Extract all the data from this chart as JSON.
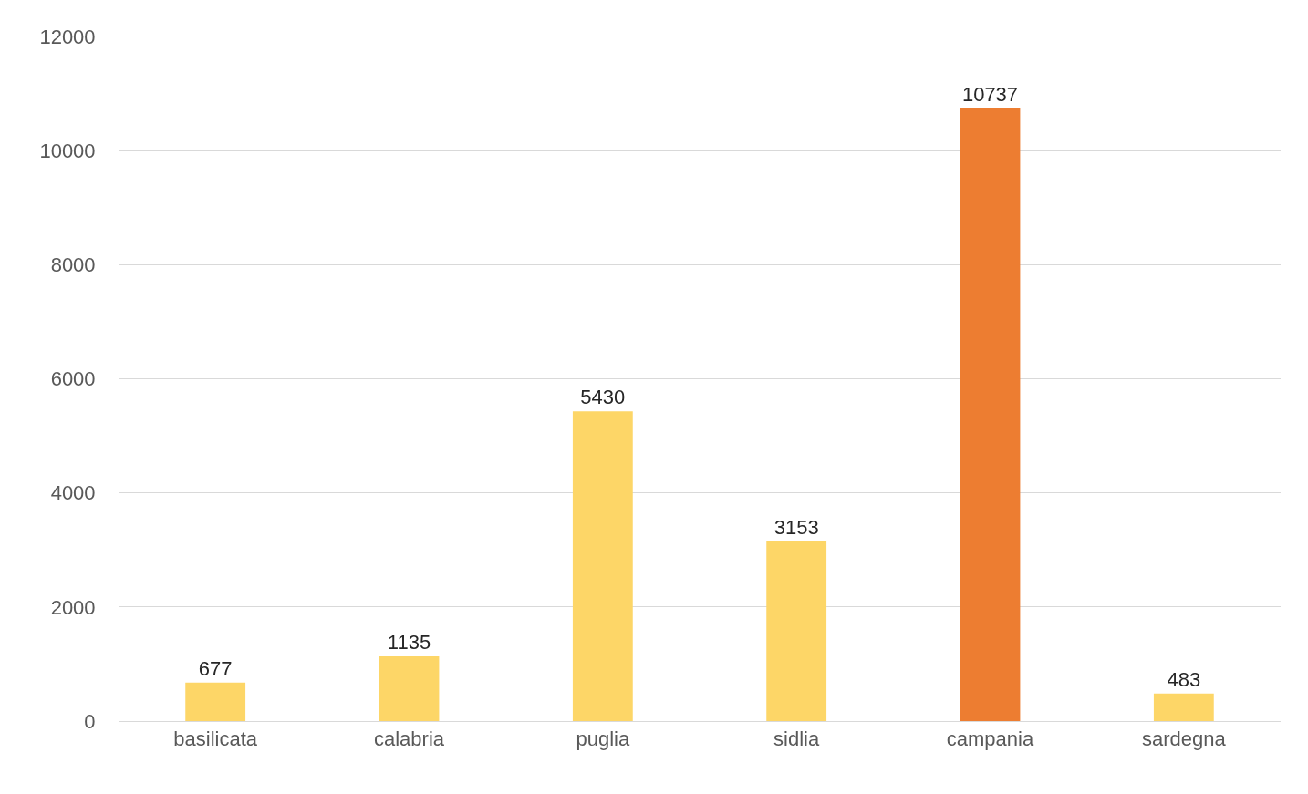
{
  "chart_data": {
    "type": "bar",
    "categories": [
      "basilicata",
      "calabria",
      "puglia",
      "sidlia",
      "campania",
      "sardegna"
    ],
    "values": [
      677,
      1135,
      5430,
      3153,
      10737,
      483
    ],
    "colors": [
      "#fdd667",
      "#fdd667",
      "#fdd667",
      "#fdd667",
      "#ed7d31",
      "#fdd667"
    ],
    "ylim": [
      0,
      12000
    ],
    "yticks": [
      0,
      2000,
      4000,
      6000,
      8000,
      10000,
      12000
    ],
    "grid": "y",
    "data_labels": true,
    "legend": false
  }
}
